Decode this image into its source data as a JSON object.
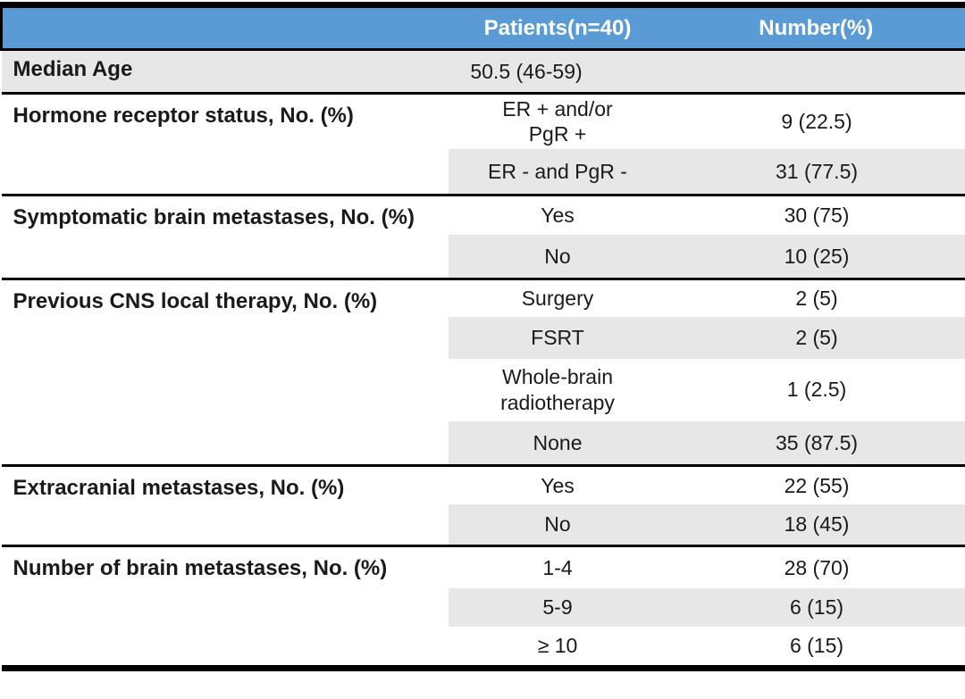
{
  "colors": {
    "header_bg": "#5B9BD5",
    "header_text": "#FFFFFF",
    "shade": "#E8E7E7",
    "line": "#000000",
    "text": "#1A1A1A"
  },
  "table": {
    "header": {
      "col1": "",
      "col2": "Patients(n=40)",
      "col3": "Number(%)"
    },
    "sections": [
      {
        "label": "Median Age",
        "rows": [
          {
            "value": "50.5 (46-59)",
            "number": ""
          }
        ]
      },
      {
        "label": "Hormone receptor status, No. (%)",
        "rows": [
          {
            "value": "ER + and/or\nPgR +",
            "number": "9 (22.5)"
          },
          {
            "value": "ER - and PgR -",
            "number": "31 (77.5)"
          }
        ]
      },
      {
        "label": "Symptomatic brain metastases, No. (%)",
        "rows": [
          {
            "value": "Yes",
            "number": "30 (75)"
          },
          {
            "value": "No",
            "number": "10 (25)"
          }
        ]
      },
      {
        "label": "Previous CNS local therapy, No. (%)",
        "rows": [
          {
            "value": "Surgery",
            "number": "2 (5)"
          },
          {
            "value": "FSRT",
            "number": "2 (5)"
          },
          {
            "value": "Whole-brain\nradiotherapy",
            "number": "1 (2.5)"
          },
          {
            "value": "None",
            "number": "35 (87.5)"
          }
        ]
      },
      {
        "label": "Extracranial metastases, No. (%)",
        "rows": [
          {
            "value": "Yes",
            "number": "22 (55)"
          },
          {
            "value": "No",
            "number": "18 (45)"
          }
        ]
      },
      {
        "label": "Number of brain metastases, No. (%)",
        "rows": [
          {
            "value": "1-4",
            "number": "28 (70)"
          },
          {
            "value": "5-9",
            "number": "6 (15)"
          },
          {
            "value": "≥ 10",
            "number": "6 (15)"
          }
        ]
      }
    ]
  }
}
